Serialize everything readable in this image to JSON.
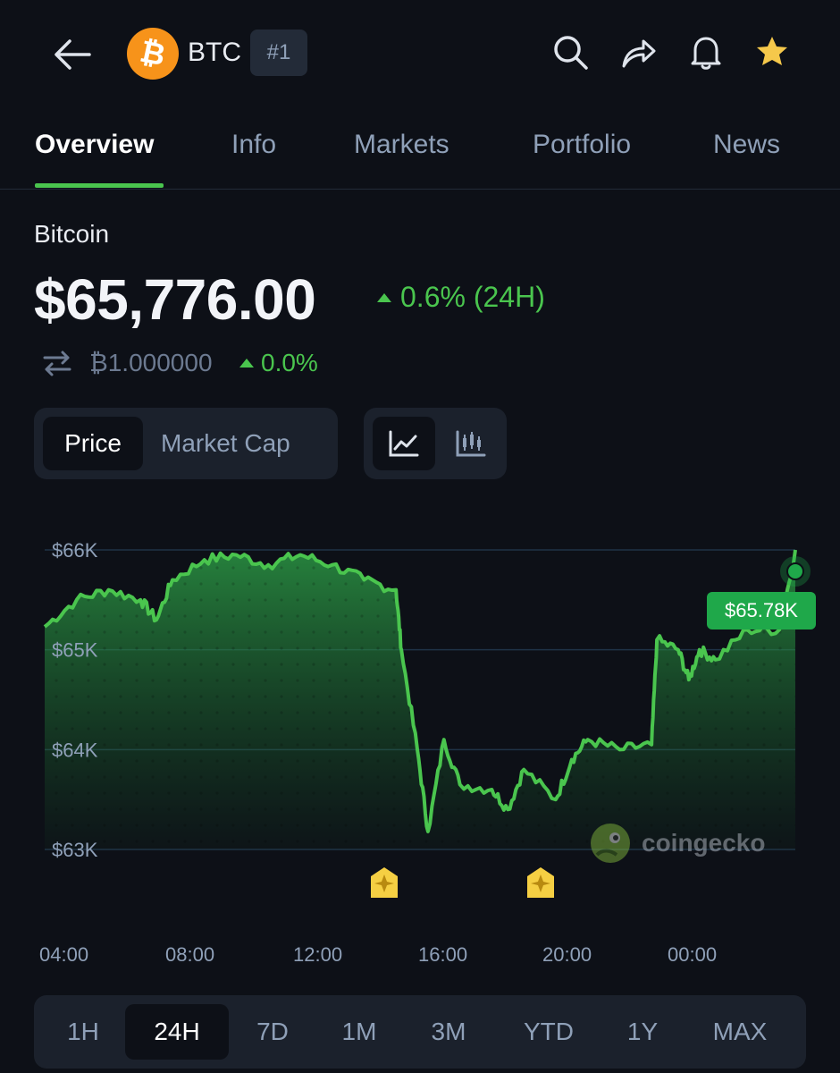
{
  "header": {
    "symbol": "BTC",
    "rank": "#1",
    "logo_glyph": "₿",
    "icons": [
      "arrow-left-icon",
      "search-icon",
      "share-icon",
      "bell-icon",
      "star-icon"
    ]
  },
  "tabs": [
    {
      "label": "Overview",
      "active": true
    },
    {
      "label": "Info",
      "active": false
    },
    {
      "label": "Markets",
      "active": false
    },
    {
      "label": "Portfolio",
      "active": false
    },
    {
      "label": "News",
      "active": false
    }
  ],
  "coin": {
    "name": "Bitcoin",
    "price": "$65,776.00",
    "change_24h": "0.6% (24H)",
    "btc_value": "₿1.000000",
    "btc_change": "0.0%"
  },
  "toggles": {
    "price": "Price",
    "market_cap": "Market Cap",
    "chart_modes": [
      "line-chart-icon",
      "candlestick-icon"
    ]
  },
  "chart_data": {
    "type": "area",
    "y_ticks": [
      "$66K",
      "$65K",
      "$64K",
      "$63K"
    ],
    "ylim": [
      63000,
      66000
    ],
    "x_ticks": [
      "04:00",
      "08:00",
      "12:00",
      "16:00",
      "20:00",
      "00:00"
    ],
    "current_label": "$65.78K",
    "series": [
      {
        "x": [
          "03:00",
          "04:00",
          "05:00",
          "06:00",
          "06:30",
          "07:00",
          "08:00",
          "09:00",
          "10:00",
          "11:00",
          "12:00",
          "13:00",
          "14:00",
          "14:10",
          "14:40",
          "15:00",
          "15:30",
          "16:00",
          "17:00",
          "17:30",
          "18:00",
          "19:00",
          "19:30",
          "20:00",
          "21:00",
          "22:00",
          "22:10",
          "22:50",
          "23:10",
          "23:30",
          "00:00",
          "01:00",
          "02:00",
          "02:30"
        ],
        "values": [
          65230,
          65500,
          65600,
          65500,
          65300,
          65700,
          65900,
          65950,
          65850,
          65950,
          65850,
          65700,
          65600,
          65000,
          64000,
          63180,
          64100,
          63650,
          63600,
          63400,
          63800,
          63500,
          63900,
          64100,
          64000,
          64050,
          65100,
          65000,
          64700,
          65000,
          64900,
          65200,
          65200,
          66000
        ]
      }
    ],
    "line_color": "#4ac54e",
    "markers": [
      "event-star",
      "event-star"
    ],
    "watermark": "coingecko"
  },
  "ranges": [
    {
      "label": "1H",
      "active": false
    },
    {
      "label": "24H",
      "active": true
    },
    {
      "label": "7D",
      "active": false
    },
    {
      "label": "1M",
      "active": false
    },
    {
      "label": "3M",
      "active": false
    },
    {
      "label": "YTD",
      "active": false
    },
    {
      "label": "1Y",
      "active": false
    },
    {
      "label": "MAX",
      "active": false
    }
  ]
}
